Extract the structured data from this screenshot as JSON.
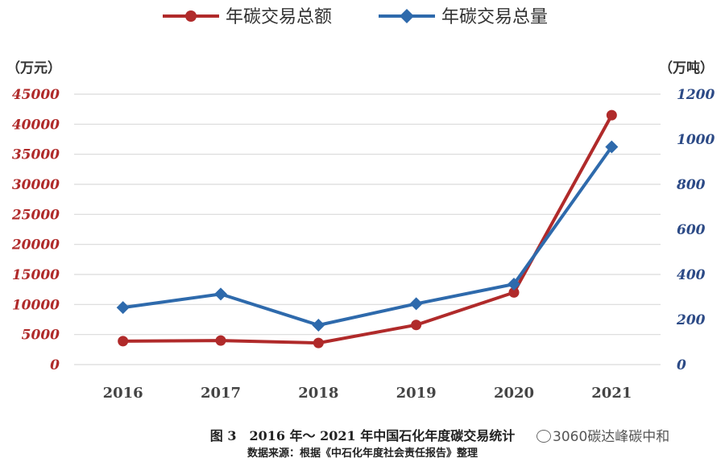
{
  "chart_data": {
    "type": "line",
    "categories": [
      "2016",
      "2017",
      "2018",
      "2019",
      "2020",
      "2021"
    ],
    "series": [
      {
        "name": "年碳交易总额",
        "axis": "left",
        "color": "#b02a2a",
        "marker": "circle",
        "values": [
          3900,
          4000,
          3600,
          6600,
          12000,
          41500
        ]
      },
      {
        "name": "年碳交易总量",
        "axis": "right",
        "color": "#2e6aac",
        "marker": "diamond",
        "values": [
          253,
          313,
          175,
          270,
          357,
          966
        ]
      }
    ],
    "y_left": {
      "unit": "（万元）",
      "min": 0,
      "max": 45000,
      "ticks": [
        0,
        5000,
        10000,
        15000,
        20000,
        25000,
        30000,
        35000,
        40000,
        45000
      ]
    },
    "y_right": {
      "unit": "（万吨）",
      "min": 0,
      "max": 1200,
      "ticks": [
        0,
        200,
        400,
        600,
        800,
        1000,
        1200
      ]
    },
    "grid": true,
    "legend_position": "top-center"
  },
  "caption": {
    "title": "图 3　2016 年～ 2021 年中国石化年度碳交易统计",
    "source": "数据来源：根据《中石化年度社会责任报告》整理"
  },
  "watermark": "3060碳达峰碳中和"
}
